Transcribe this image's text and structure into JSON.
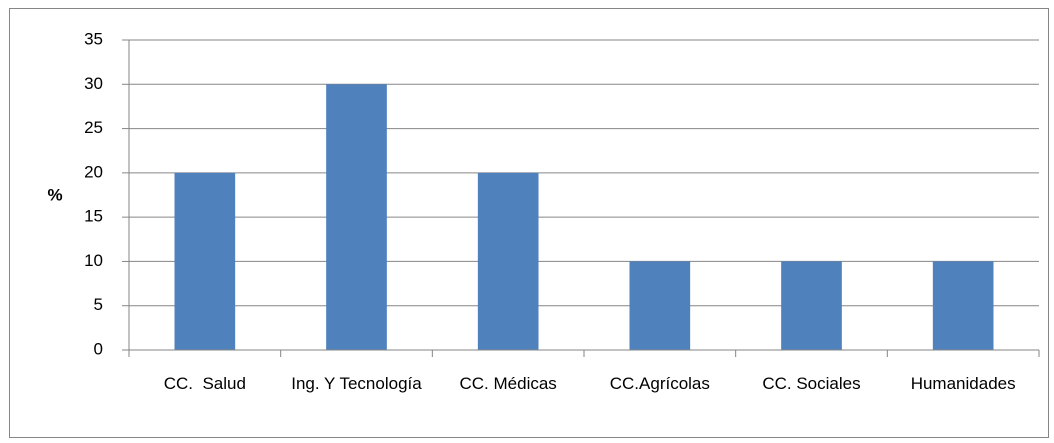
{
  "chart_data": {
    "type": "bar",
    "y_label": "%",
    "categories": [
      "CC.  Salud",
      "Ing. Y Tecnología",
      "CC. Médicas",
      "CC.Agrícolas",
      "CC. Sociales",
      "Humanidades"
    ],
    "values": [
      20,
      30,
      20,
      10,
      10,
      10
    ],
    "color": "#4f81bd",
    "ylim": [
      0,
      35
    ],
    "yticks": [
      0,
      5,
      10,
      15,
      20,
      25,
      30,
      35
    ],
    "grid": true
  }
}
